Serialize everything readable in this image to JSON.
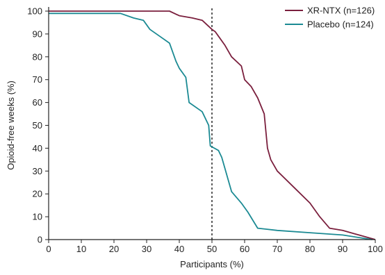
{
  "chart_data": {
    "type": "line",
    "title": "",
    "xlabel": "Participants (%)",
    "ylabel": "Opioid-free weeks (%)",
    "xlim": [
      0,
      100
    ],
    "ylim": [
      0,
      100
    ],
    "xticks": [
      0,
      10,
      20,
      30,
      40,
      50,
      60,
      70,
      80,
      90,
      100
    ],
    "yticks": [
      0,
      10,
      20,
      30,
      40,
      50,
      60,
      70,
      80,
      90,
      100
    ],
    "grid": false,
    "legend_position": "top-right",
    "reference_line": {
      "x": 50,
      "style": "dotted"
    },
    "series": [
      {
        "name": "XR-NTX (n=126)",
        "color": "#7a1f3d",
        "x": [
          0,
          37,
          40,
          44,
          47,
          50,
          51,
          52,
          54,
          56,
          59,
          60,
          62,
          64,
          66,
          67,
          68,
          70,
          75,
          80,
          83,
          86,
          90,
          95,
          100
        ],
        "y": [
          100,
          100,
          98,
          97,
          96,
          92,
          91,
          89,
          85,
          80,
          76,
          70,
          67,
          62,
          55,
          40,
          35,
          30,
          23,
          16,
          10,
          5,
          4,
          2,
          0
        ]
      },
      {
        "name": "Placebo (n=124)",
        "color": "#1b8a93",
        "x": [
          0,
          22,
          26,
          29,
          31,
          34,
          37,
          39,
          40,
          42,
          43,
          47,
          49,
          49.5,
          52,
          53,
          54,
          55,
          56,
          59,
          61,
          64,
          70,
          80,
          90,
          99
        ],
        "y": [
          99,
          99,
          97,
          96,
          92,
          89,
          86,
          78,
          75,
          71,
          60,
          56,
          50,
          41,
          39,
          36,
          31,
          26,
          21,
          16,
          12,
          5,
          4,
          3,
          2,
          0
        ]
      }
    ]
  }
}
